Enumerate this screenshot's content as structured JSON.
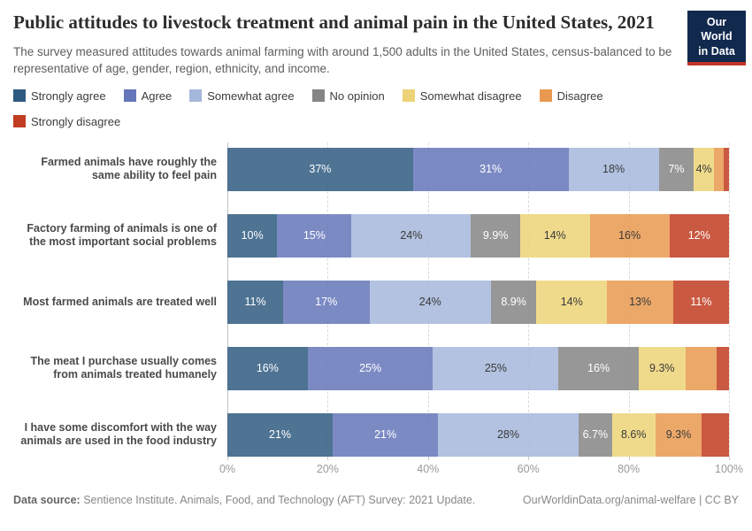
{
  "header": {
    "title": "Public attitudes to livestock treatment and animal pain in the United States, 2021",
    "subtitle": "The survey measured attitudes towards animal farming with around 1,500 adults in the United States, census-balanced to be representative of age, gender, region, ethnicity, and income.",
    "logo": {
      "line1": "Our World",
      "line2": "in Data"
    }
  },
  "chart_data": {
    "type": "bar",
    "orientation": "horizontal",
    "stacked": true,
    "grid": "vertical-dashed",
    "legend_position": "top",
    "bar_opacity": 0.85,
    "xlim": [
      0,
      100
    ],
    "xticks": [
      "0%",
      "20%",
      "40%",
      "60%",
      "80%",
      "100%"
    ],
    "categories": [
      "Farmed animals have roughly the same ability to feel pain",
      "Factory farming of animals is one of the most important social problems",
      "Most farmed animals are treated well",
      "The meat I purchase usually comes from animals treated humanely",
      "I have some discomfort with the way animals are used in the food industry"
    ],
    "series": [
      {
        "name": "Strongly agree",
        "color": "#2f5a80",
        "text_color": "#ffffff",
        "values": [
          37,
          10,
          11,
          16,
          21
        ],
        "labels": [
          "37%",
          "10%",
          "11%",
          "16%",
          "21%"
        ]
      },
      {
        "name": "Agree",
        "color": "#6576ba",
        "text_color": "#ffffff",
        "values": [
          31,
          15,
          17,
          25,
          21
        ],
        "labels": [
          "31%",
          "15%",
          "17%",
          "25%",
          "21%"
        ]
      },
      {
        "name": "Somewhat agree",
        "color": "#a5b7da",
        "text_color": "#3a3a3a",
        "values": [
          18,
          24,
          24,
          25,
          28
        ],
        "labels": [
          "18%",
          "24%",
          "24%",
          "25%",
          "28%"
        ]
      },
      {
        "name": "No opinion",
        "color": "#858585",
        "text_color": "#ffffff",
        "values": [
          7,
          9.9,
          8.9,
          16,
          6.7
        ],
        "labels": [
          "7%",
          "9.9%",
          "8.9%",
          "16%",
          "6.7%"
        ]
      },
      {
        "name": "Somewhat disagree",
        "color": "#ecd377",
        "text_color": "#3a3a3a",
        "values": [
          4,
          14,
          14,
          9.3,
          8.6
        ],
        "labels": [
          "4%",
          "14%",
          "14%",
          "9.3%",
          "8.6%"
        ]
      },
      {
        "name": "Disagree",
        "color": "#e9994f",
        "text_color": "#3a3a3a",
        "values": [
          2,
          16,
          13,
          6.3,
          9.3
        ],
        "labels": [
          "",
          "16%",
          "13%",
          "",
          "9.3%"
        ]
      },
      {
        "name": "Strongly disagree",
        "color": "#c13c20",
        "text_color": "#ffffff",
        "values": [
          1,
          12,
          11,
          2.4,
          5.4
        ],
        "labels": [
          "",
          "12%",
          "11%",
          "",
          ""
        ]
      }
    ]
  },
  "footer": {
    "datasource_label": "Data source:",
    "datasource_text": " Sentience Institute. Animals, Food, and Technology (AFT) Survey: 2021 Update.",
    "rights": "OurWorldinData.org/animal-welfare | CC BY"
  }
}
